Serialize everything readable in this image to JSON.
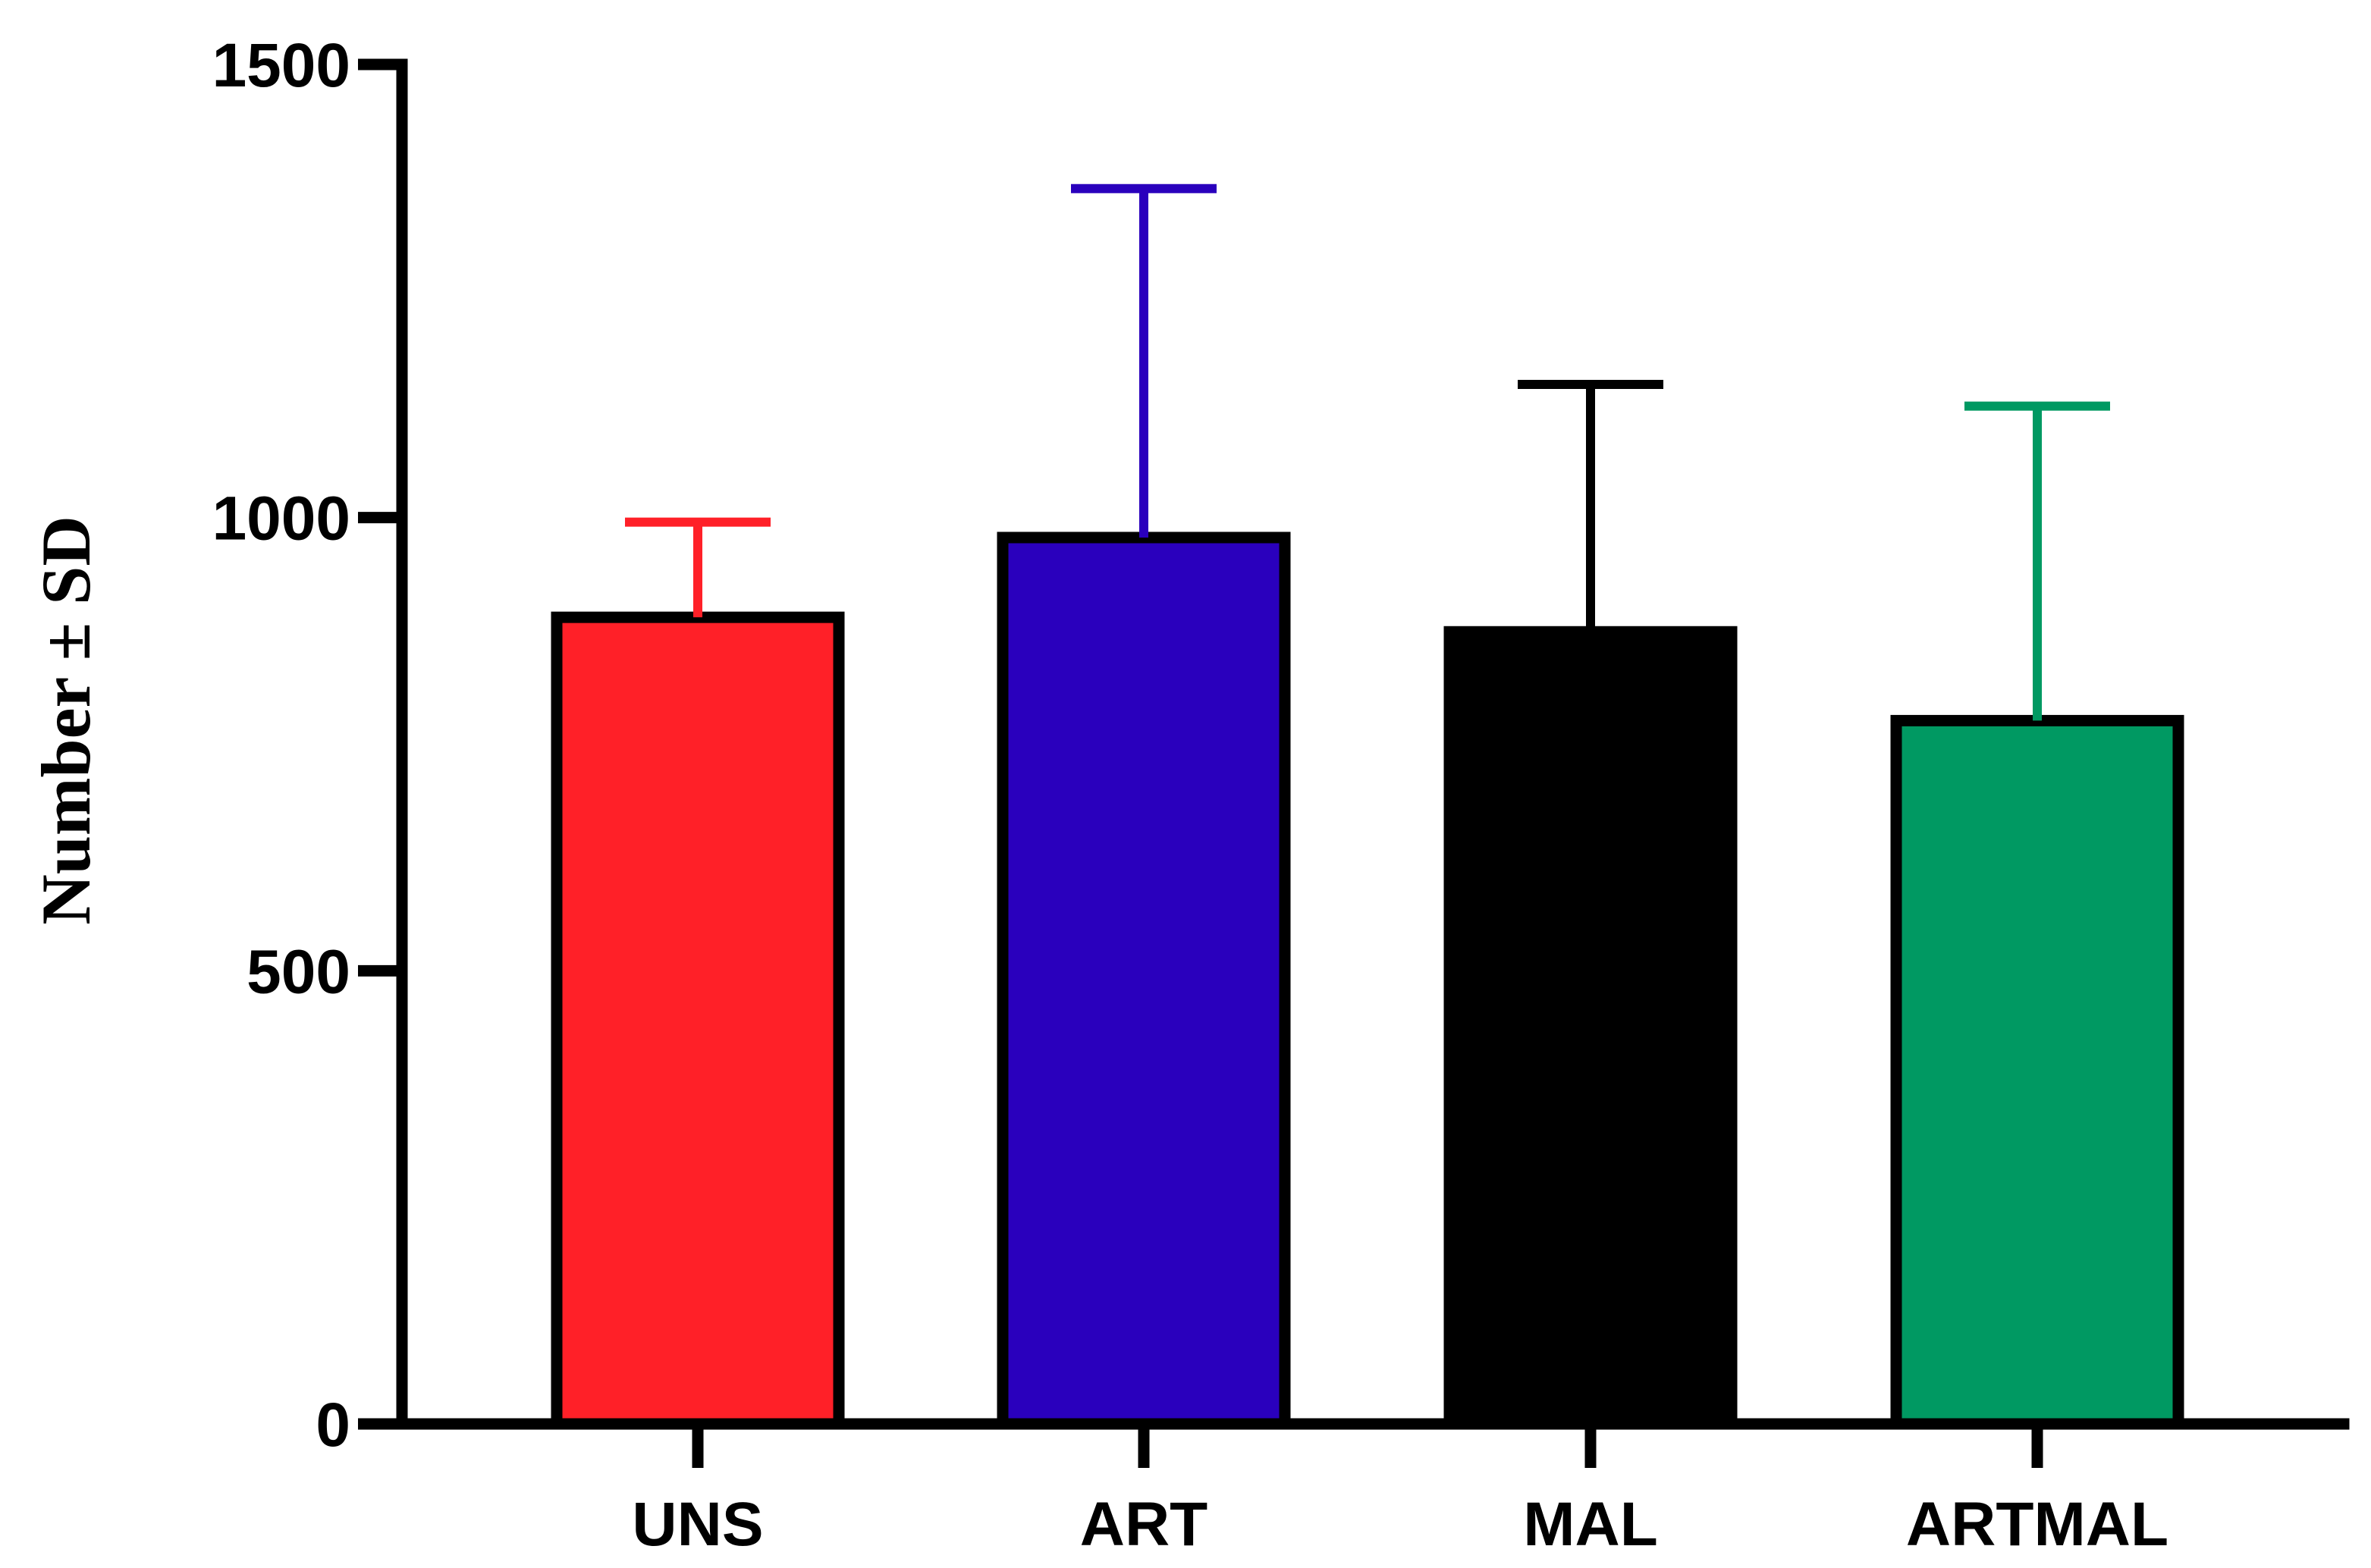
{
  "chart_data": {
    "type": "bar",
    "title": "",
    "xlabel": "",
    "ylabel": "Number ± SD",
    "ylim": [
      0,
      1500
    ],
    "yticks": [
      0,
      500,
      1000,
      1500
    ],
    "ytick_labels": [
      "0",
      "500",
      "1000",
      "1500"
    ],
    "grid": false,
    "legend": "none",
    "categories": [
      "UNS",
      "ART",
      "MAL",
      "ARTMAL"
    ],
    "values": [
      890,
      978,
      874,
      776
    ],
    "sd": [
      105,
      385,
      273,
      347
    ],
    "colors": [
      "#ff2028",
      "#2a00bd",
      "#000000",
      "#009962"
    ]
  }
}
